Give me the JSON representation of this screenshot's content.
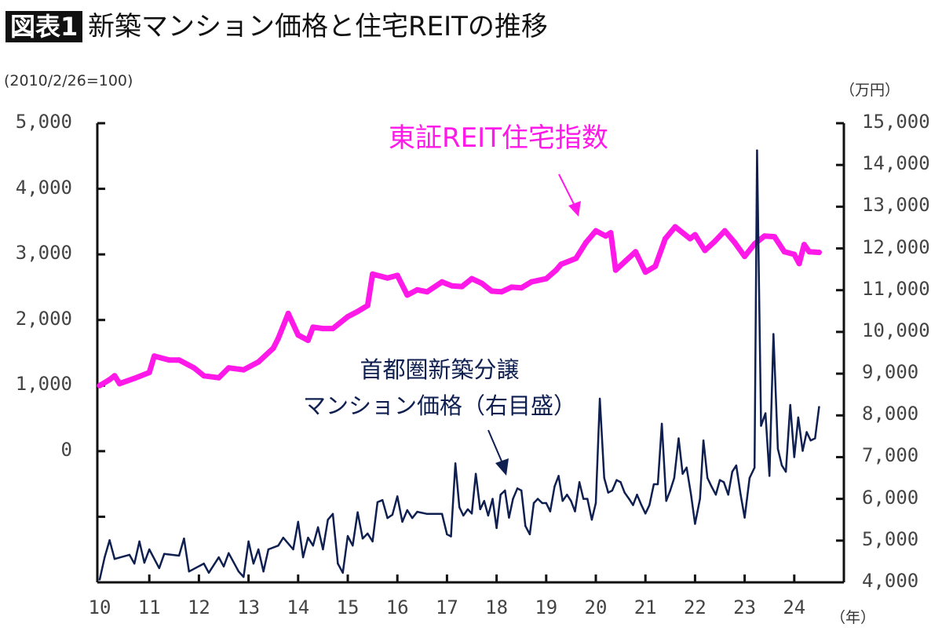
{
  "header": {
    "badge": "図表1",
    "title": "新築マンション価格と住宅REITの推移"
  },
  "chart_data": {
    "type": "line",
    "title": "新築マンション価格と住宅REITの推移",
    "left_axis": {
      "unit_label": "(2010/2/26=100)",
      "ylim": [
        -2000,
        5000
      ],
      "tick_values": [
        5000,
        4000,
        3000,
        2000,
        1000,
        0,
        -1000
      ],
      "tick_labels": [
        "5,000",
        "4,000",
        "3,000",
        "2,000",
        "1,000",
        "0",
        ""
      ]
    },
    "right_axis": {
      "unit_label": "（万円）",
      "ylim": [
        4000,
        15000
      ],
      "tick_values": [
        15000,
        14000,
        13000,
        12000,
        11000,
        10000,
        9000,
        8000,
        7000,
        6000,
        5000,
        4000
      ],
      "tick_labels": [
        "15,000",
        "14,000",
        "13,000",
        "12,000",
        "11,000",
        "10,000",
        "9,000",
        "8,000",
        "7,000",
        "6,000",
        "5,000",
        "4,000"
      ]
    },
    "x_axis": {
      "unit_label": "（年）",
      "xlim": [
        10,
        25
      ],
      "ticks": [
        "10",
        "11",
        "12",
        "13",
        "14",
        "15",
        "16",
        "17",
        "18",
        "19",
        "20",
        "21",
        "22",
        "23",
        "24"
      ]
    },
    "grid": false,
    "series": [
      {
        "name": "東証REIT住宅指数",
        "axis": "left",
        "color": "#ff19e8",
        "x": [
          10.0,
          10.2,
          10.3,
          10.4,
          10.7,
          11.0,
          11.1,
          11.4,
          11.6,
          11.9,
          12.1,
          12.4,
          12.6,
          12.9,
          13.2,
          13.5,
          13.6,
          13.8,
          14.0,
          14.2,
          14.3,
          14.5,
          14.7,
          15.0,
          15.2,
          15.4,
          15.5,
          15.8,
          16.0,
          16.2,
          16.4,
          16.6,
          16.9,
          17.1,
          17.3,
          17.5,
          17.7,
          17.9,
          18.1,
          18.3,
          18.5,
          18.7,
          19.0,
          19.2,
          19.3,
          19.6,
          19.8,
          20.0,
          20.2,
          20.3,
          20.4,
          20.6,
          20.8,
          21.0,
          21.2,
          21.4,
          21.6,
          21.9,
          22.0,
          22.2,
          22.4,
          22.6,
          22.8,
          23.0,
          23.2,
          23.4,
          23.6,
          23.8,
          24.0,
          24.1,
          24.2,
          24.3,
          24.5
        ],
        "y": [
          1000,
          1090,
          1150,
          1030,
          1110,
          1200,
          1450,
          1390,
          1390,
          1270,
          1150,
          1120,
          1270,
          1240,
          1360,
          1570,
          1720,
          2100,
          1770,
          1690,
          1890,
          1870,
          1870,
          2050,
          2130,
          2220,
          2700,
          2640,
          2680,
          2380,
          2460,
          2430,
          2580,
          2520,
          2510,
          2630,
          2560,
          2440,
          2430,
          2500,
          2490,
          2580,
          2630,
          2760,
          2850,
          2940,
          3180,
          3360,
          3280,
          3330,
          2760,
          2900,
          3040,
          2730,
          2820,
          3240,
          3420,
          3240,
          3300,
          3060,
          3200,
          3360,
          3180,
          2970,
          3160,
          3280,
          3270,
          3040,
          3000,
          2860,
          3150,
          3040,
          3030
        ]
      },
      {
        "name": "首都圏新築分譲マンション価格（右目盛）",
        "axis": "right",
        "color": "#0e1f50",
        "x": [
          10.0,
          10.1,
          10.2,
          10.3,
          10.6,
          10.7,
          10.8,
          10.9,
          11.0,
          11.2,
          11.3,
          11.6,
          11.7,
          11.8,
          12.1,
          12.2,
          12.4,
          12.5,
          12.6,
          12.8,
          12.9,
          13.0,
          13.1,
          13.2,
          13.3,
          13.4,
          13.6,
          13.7,
          13.9,
          14.0,
          14.1,
          14.2,
          14.3,
          14.4,
          14.5,
          14.6,
          14.7,
          14.8,
          14.9,
          15.0,
          15.1,
          15.2,
          15.3,
          15.4,
          15.5,
          15.6,
          15.7,
          15.8,
          15.9,
          16.0,
          16.1,
          16.2,
          16.3,
          16.4,
          16.6,
          16.9,
          17.0,
          17.08,
          17.17,
          17.25,
          17.33,
          17.42,
          17.5,
          17.58,
          17.67,
          17.75,
          17.83,
          17.92,
          18.0,
          18.08,
          18.17,
          18.25,
          18.33,
          18.42,
          18.5,
          18.58,
          18.67,
          18.75,
          18.83,
          18.92,
          19.0,
          19.08,
          19.17,
          19.25,
          19.33,
          19.42,
          19.5,
          19.58,
          19.67,
          19.75,
          19.83,
          19.92,
          20.0,
          20.08,
          20.17,
          20.25,
          20.33,
          20.42,
          20.5,
          20.58,
          20.67,
          20.75,
          20.83,
          20.92,
          21.0,
          21.08,
          21.17,
          21.25,
          21.33,
          21.42,
          21.5,
          21.58,
          21.67,
          21.75,
          21.83,
          21.92,
          22.0,
          22.1,
          22.17,
          22.25,
          22.33,
          22.42,
          22.5,
          22.58,
          22.67,
          22.75,
          22.83,
          22.92,
          23.0,
          23.1,
          23.2,
          23.25,
          23.33,
          23.42,
          23.5,
          23.58,
          23.67,
          23.75,
          23.83,
          23.92,
          24.0,
          24.08,
          24.17,
          24.25,
          24.33,
          24.42,
          24.5
        ],
        "y": [
          4070,
          4600,
          5010,
          4560,
          4660,
          4450,
          4980,
          4470,
          4790,
          4340,
          4680,
          4640,
          5050,
          4260,
          4450,
          4230,
          4600,
          4380,
          4700,
          4260,
          4130,
          4980,
          4450,
          4790,
          4260,
          4790,
          4880,
          5070,
          4790,
          5450,
          4600,
          5070,
          4880,
          5320,
          4790,
          5500,
          5640,
          4450,
          4230,
          5110,
          4880,
          5680,
          5050,
          5170,
          4980,
          5920,
          5970,
          5540,
          5620,
          6060,
          5450,
          5730,
          5540,
          5690,
          5640,
          5640,
          5150,
          5100,
          6850,
          5800,
          5600,
          5750,
          5650,
          6600,
          5750,
          5950,
          5600,
          6000,
          5300,
          6100,
          6200,
          5550,
          6000,
          6250,
          6200,
          5350,
          5150,
          5900,
          6000,
          5900,
          5900,
          5700,
          6300,
          6550,
          5950,
          6100,
          5950,
          5700,
          6400,
          6000,
          6000,
          5500,
          5900,
          8400,
          6500,
          6150,
          6200,
          6450,
          6400,
          6150,
          6000,
          5850,
          6100,
          5850,
          5650,
          5850,
          6350,
          6350,
          7800,
          5950,
          6200,
          6500,
          7450,
          6600,
          6750,
          6100,
          5400,
          6000,
          7400,
          6500,
          6300,
          6100,
          6450,
          6400,
          6100,
          6650,
          6800,
          6100,
          5550,
          6500,
          6750,
          14350,
          7750,
          8050,
          6550,
          9950,
          7200,
          6800,
          6650,
          8250,
          7000,
          7950,
          7150,
          7600,
          7400,
          7450,
          8200
        ]
      }
    ],
    "annotations": [
      {
        "text": "東証REIT住宅指数",
        "color": "#ff19e8"
      },
      {
        "lines": [
          "首都圏新築分譲",
          "マンション価格（右目盛）"
        ],
        "color": "#0e1f50"
      }
    ]
  }
}
